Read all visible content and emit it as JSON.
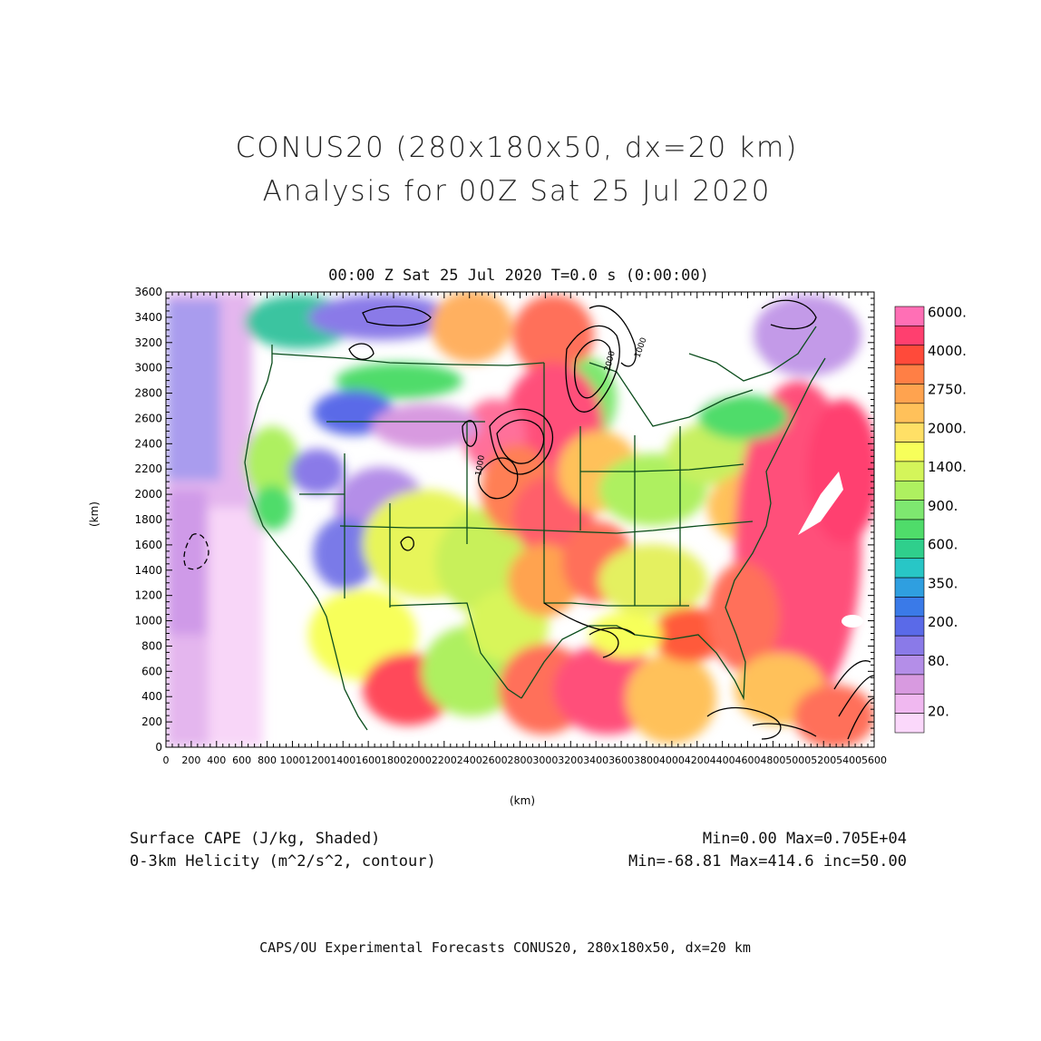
{
  "title": {
    "line1": "CONUS20 (280x180x50, dx=20 km)",
    "line2": "Analysis for 00Z Sat 25 Jul 2020"
  },
  "subtitle": "00:00 Z Sat 25 Jul 2020    T=0.0 s (0:00:00)",
  "axes": {
    "x_label": "(km)",
    "y_label": "(km)",
    "x_range": [
      0,
      5600
    ],
    "y_range": [
      0,
      3600
    ],
    "x_ticks": [
      "0",
      "200",
      "400",
      "600",
      "800",
      "1000",
      "1200",
      "1400",
      "1600",
      "1800",
      "2000",
      "2200",
      "2400",
      "2600",
      "2800",
      "3000",
      "3200",
      "3400",
      "3600",
      "3800",
      "4000",
      "4200",
      "4400",
      "4600",
      "4800",
      "5000",
      "5200",
      "5400",
      "5600"
    ],
    "y_ticks": [
      "0",
      "200",
      "400",
      "600",
      "800",
      "1000",
      "1200",
      "1400",
      "1600",
      "1800",
      "2000",
      "2200",
      "2400",
      "2600",
      "2800",
      "3000",
      "3200",
      "3400",
      "3600"
    ]
  },
  "colorbar": {
    "labels": [
      "6000.",
      "4000.",
      "2750.",
      "2000.",
      "1400.",
      "900.",
      "600.",
      "350.",
      "200.",
      "80.",
      "20."
    ],
    "colors": [
      "#ff6fb5",
      "#ff3f6f",
      "#ff4a3a",
      "#ff7f45",
      "#ffa34f",
      "#ffc15a",
      "#ffe066",
      "#f7ff5a",
      "#d4f55a",
      "#aef060",
      "#7ee870",
      "#4fdc6a",
      "#2fcf8c",
      "#28c6c6",
      "#2f9fe0",
      "#3a7ae8",
      "#5a6ae8",
      "#8a7ae8",
      "#b48ee8",
      "#d89ae0",
      "#f0b8f0",
      "#fbd8fb"
    ]
  },
  "contour_labels": [
    "2000",
    "1000",
    "1000"
  ],
  "legend": {
    "left_line1": "Surface CAPE (J/kg, Shaded)",
    "left_line2": "0-3km Helicity (m^2/s^2, contour)",
    "right_line1": "Min=0.00 Max=0.705E+04",
    "right_line2": "Min=-68.81 Max=414.6 inc=50.00"
  },
  "footer": "CAPS/OU Experimental Forecasts  CONUS20, 280x180x50, dx=20 km"
}
